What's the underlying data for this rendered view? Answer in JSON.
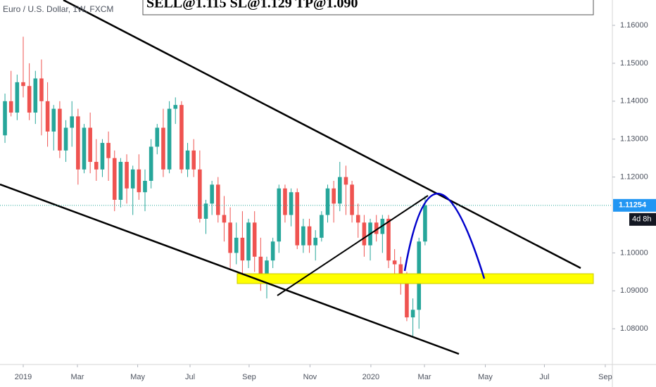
{
  "chart_data": {
    "type": "candlestick",
    "title": "Euro / U.S. Dollar, 1W, FXCM",
    "annotation": "SELL@1.115 SL@1.129 TP@1.090",
    "last_price": 1.11254,
    "countdown": "4d 8h",
    "up_color": "#26a69a",
    "down_color": "#ef5350",
    "x": [
      -3,
      -2,
      -1,
      0,
      1,
      2,
      3,
      4,
      5,
      6,
      7,
      8,
      9,
      10,
      11,
      12,
      13,
      14,
      15,
      16,
      17,
      18,
      19,
      20,
      21,
      22,
      23,
      24,
      25,
      26,
      27,
      28,
      29,
      30,
      31,
      32,
      33,
      34,
      35,
      36,
      37,
      38,
      39,
      40,
      41,
      42,
      43,
      44,
      45,
      46,
      47,
      48,
      49,
      50,
      51,
      52,
      53,
      54,
      55,
      56,
      57,
      58,
      59,
      60,
      61,
      62,
      63,
      64,
      65,
      66
    ],
    "open": [
      1.131,
      1.14,
      1.137,
      1.145,
      1.144,
      1.137,
      1.146,
      1.14,
      1.132,
      1.138,
      1.127,
      1.133,
      1.136,
      1.122,
      1.133,
      1.124,
      1.122,
      1.129,
      1.125,
      1.114,
      1.124,
      1.117,
      1.122,
      1.116,
      1.119,
      1.128,
      1.133,
      1.122,
      1.138,
      1.139,
      1.122,
      1.127,
      1.122,
      1.109,
      1.113,
      1.118,
      1.11,
      1.108,
      1.1,
      1.104,
      1.098,
      1.108,
      1.099,
      1.094,
      1.098,
      1.103,
      1.117,
      1.11,
      1.116,
      1.102,
      1.107,
      1.102,
      1.104,
      1.11,
      1.117,
      1.113,
      1.12,
      1.118,
      1.11,
      1.108,
      1.102,
      1.108,
      1.105,
      1.109,
      1.098,
      1.097,
      1.094,
      1.083,
      1.085,
      1.103
    ],
    "high": [
      1.142,
      1.148,
      1.147,
      1.157,
      1.15,
      1.148,
      1.151,
      1.145,
      1.139,
      1.14,
      1.135,
      1.14,
      1.138,
      1.134,
      1.137,
      1.13,
      1.13,
      1.132,
      1.127,
      1.125,
      1.126,
      1.123,
      1.126,
      1.122,
      1.13,
      1.134,
      1.138,
      1.14,
      1.141,
      1.14,
      1.129,
      1.13,
      1.127,
      1.114,
      1.119,
      1.12,
      1.115,
      1.112,
      1.108,
      1.111,
      1.109,
      1.111,
      1.104,
      1.099,
      1.104,
      1.118,
      1.118,
      1.117,
      1.117,
      1.109,
      1.109,
      1.106,
      1.111,
      1.118,
      1.119,
      1.124,
      1.123,
      1.119,
      1.113,
      1.11,
      1.109,
      1.11,
      1.11,
      1.11,
      1.101,
      1.099,
      1.095,
      1.088,
      1.104,
      1.115
    ],
    "low": [
      1.129,
      1.136,
      1.135,
      1.141,
      1.135,
      1.134,
      1.131,
      1.128,
      1.127,
      1.125,
      1.124,
      1.128,
      1.118,
      1.121,
      1.121,
      1.119,
      1.12,
      1.119,
      1.111,
      1.112,
      1.113,
      1.11,
      1.114,
      1.111,
      1.117,
      1.126,
      1.12,
      1.121,
      1.134,
      1.121,
      1.12,
      1.12,
      1.108,
      1.105,
      1.11,
      1.108,
      1.103,
      1.096,
      1.097,
      1.093,
      1.096,
      1.095,
      1.09,
      1.088,
      1.096,
      1.1,
      1.108,
      1.107,
      1.101,
      1.1,
      1.1,
      1.098,
      1.103,
      1.108,
      1.108,
      1.111,
      1.11,
      1.108,
      1.104,
      1.099,
      1.098,
      1.103,
      1.1,
      1.096,
      1.094,
      1.089,
      1.082,
      1.078,
      1.08,
      1.102
    ],
    "close": [
      1.14,
      1.137,
      1.145,
      1.144,
      1.137,
      1.146,
      1.14,
      1.132,
      1.138,
      1.127,
      1.133,
      1.136,
      1.122,
      1.133,
      1.124,
      1.122,
      1.129,
      1.125,
      1.114,
      1.124,
      1.117,
      1.122,
      1.116,
      1.119,
      1.128,
      1.133,
      1.122,
      1.138,
      1.139,
      1.122,
      1.127,
      1.122,
      1.109,
      1.113,
      1.118,
      1.11,
      1.108,
      1.1,
      1.104,
      1.098,
      1.108,
      1.099,
      1.094,
      1.098,
      1.103,
      1.117,
      1.11,
      1.116,
      1.102,
      1.107,
      1.102,
      1.104,
      1.11,
      1.117,
      1.113,
      1.12,
      1.118,
      1.11,
      1.108,
      1.102,
      1.108,
      1.105,
      1.109,
      1.098,
      1.097,
      1.094,
      1.083,
      1.085,
      1.103,
      1.11254
    ],
    "xlim": [
      -3.815,
      96.763
    ],
    "xticks": [
      {
        "value": 0,
        "label": "2019"
      },
      {
        "value": 8.9,
        "label": "Mar"
      },
      {
        "value": 18.8,
        "label": "May"
      },
      {
        "value": 27.4,
        "label": "Jul"
      },
      {
        "value": 37.1,
        "label": "Sep"
      },
      {
        "value": 47.1,
        "label": "Nov"
      },
      {
        "value": 57.1,
        "label": "2020"
      },
      {
        "value": 65.9,
        "label": "Mar"
      },
      {
        "value": 75.9,
        "label": "May"
      },
      {
        "value": 85.6,
        "label": "Jul"
      },
      {
        "value": 95.6,
        "label": "Sep"
      }
    ],
    "ylim": [
      1.07058,
      1.16668
    ],
    "yticks": [
      {
        "value": 1.16,
        "label": "1.16000"
      },
      {
        "value": 1.15,
        "label": "1.15000"
      },
      {
        "value": 1.14,
        "label": "1.14000"
      },
      {
        "value": 1.13,
        "label": "1.13000"
      },
      {
        "value": 1.12,
        "label": "1.12000"
      },
      {
        "value": 1.1,
        "label": "1.10000"
      },
      {
        "value": 1.09,
        "label": "1.09000"
      },
      {
        "value": 1.08,
        "label": "1.08000"
      }
    ]
  }
}
